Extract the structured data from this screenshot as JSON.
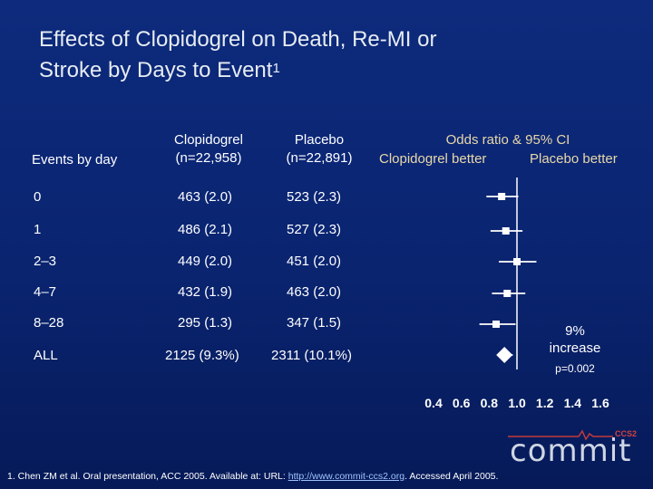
{
  "title": {
    "line1": "Effects of Clopidogrel on Death, Re-MI or",
    "line2": "Stroke by Days to Event",
    "superscript": "1"
  },
  "headers": {
    "events": "Events by day",
    "clopi": [
      "Clopidogrel",
      "(n=22,958)"
    ],
    "placebo": [
      "Placebo",
      "(n=22,891)"
    ],
    "or": "Odds ratio & 95% CI",
    "left_better": "Clopidogrel better",
    "right_better": "Placebo better"
  },
  "rows": [
    {
      "day": "0",
      "clopi": "463 (2.0)",
      "placebo": "523 (2.3)"
    },
    {
      "day": "1",
      "clopi": "486 (2.1)",
      "placebo": "527 (2.3)"
    },
    {
      "day": "2–3",
      "clopi": "449 (2.0)",
      "placebo": "451 (2.0)"
    },
    {
      "day": "4–7",
      "clopi": "432 (1.9)",
      "placebo": "463 (2.0)"
    },
    {
      "day": "8–28",
      "clopi": "295 (1.3)",
      "placebo": "347 (1.5)"
    },
    {
      "day": "ALL",
      "clopi": "2125 (9.3%)",
      "placebo": "2311 (10.1%)"
    }
  ],
  "annotation": {
    "line1": "9%",
    "line2": "increase",
    "p": "p=0.002"
  },
  "footnote": {
    "text": "1. Chen ZM et al. Oral presentation, ACC 2005. Available at: URL: ",
    "link": "http://www.commit-ccs2.org",
    "tail": ". Accessed April 2005."
  },
  "logo": {
    "word": "commit",
    "tag": "CCS2"
  },
  "chart_data": {
    "type": "forest",
    "x_ticks": [
      "0.4",
      "0.6",
      "0.8",
      "1.0",
      "1.2",
      "1.4",
      "1.6"
    ],
    "xlim": [
      0.4,
      1.6
    ],
    "reference": 1.0,
    "points": [
      {
        "label": "0",
        "or": 0.89,
        "lo": 0.78,
        "hi": 1.01,
        "shape": "square"
      },
      {
        "label": "1",
        "or": 0.92,
        "lo": 0.81,
        "hi": 1.04,
        "shape": "square"
      },
      {
        "label": "2–3",
        "or": 1.0,
        "lo": 0.87,
        "hi": 1.14,
        "shape": "square"
      },
      {
        "label": "4–7",
        "or": 0.93,
        "lo": 0.82,
        "hi": 1.06,
        "shape": "square"
      },
      {
        "label": "8–28",
        "or": 0.85,
        "lo": 0.73,
        "hi": 0.99,
        "shape": "square"
      },
      {
        "label": "ALL",
        "or": 0.91,
        "lo": 0.86,
        "hi": 0.97,
        "shape": "diamond"
      }
    ],
    "colors": {
      "marker": "#ffffff",
      "ci": "#ffffff",
      "axis": "#ffffff"
    }
  }
}
